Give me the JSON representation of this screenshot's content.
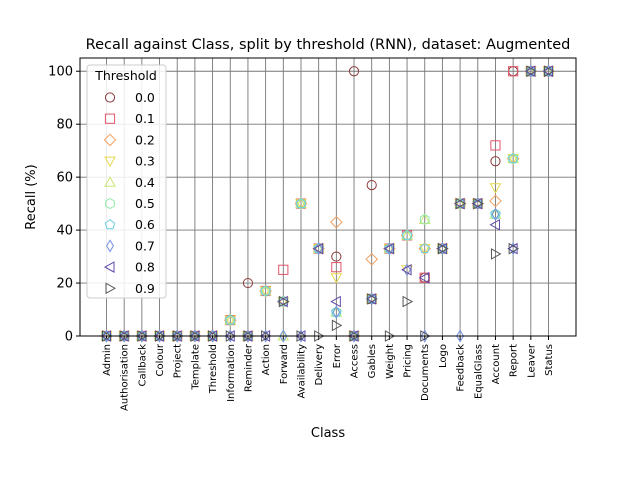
{
  "chart_data": {
    "type": "scatter",
    "title": "Recall against Class, split by threshold (RNN), dataset: Augmented",
    "xlabel": "Class",
    "ylabel": "Recall (%)",
    "ylim": [
      0,
      105
    ],
    "yticks": [
      0,
      20,
      40,
      60,
      80,
      100
    ],
    "grid": true,
    "legend": {
      "title": "Threshold",
      "placement": "top-left"
    },
    "categories": [
      "Admin",
      "Authorisation",
      "Callback",
      "Colour",
      "Project",
      "Template",
      "Threshold",
      "Information",
      "Reminder",
      "Action",
      "Forward",
      "Availability",
      "Delivery",
      "Error",
      "Access",
      "Gables",
      "Weight",
      "Pricing",
      "Documents",
      "Logo",
      "Feedback",
      "EqualGlass",
      "Account",
      "Report",
      "Leaver",
      "Status"
    ],
    "series": [
      {
        "name": "0.0",
        "marker": "circle",
        "color": "#8b3a3a",
        "values": [
          0,
          0,
          0,
          0,
          0,
          0,
          0,
          6,
          20,
          17,
          13,
          50,
          33,
          30,
          100,
          57,
          33,
          38,
          22,
          33,
          50,
          50,
          66,
          100,
          100,
          100
        ]
      },
      {
        "name": "0.1",
        "marker": "square",
        "color": "#e0556a",
        "values": [
          0,
          0,
          0,
          0,
          0,
          0,
          0,
          6,
          0,
          17,
          25,
          50,
          33,
          26,
          0,
          14,
          33,
          38,
          22,
          33,
          50,
          50,
          72,
          100,
          100,
          100
        ]
      },
      {
        "name": "0.2",
        "marker": "diamond",
        "color": "#f0a060",
        "values": [
          0,
          0,
          0,
          0,
          0,
          0,
          0,
          6,
          0,
          17,
          13,
          50,
          33,
          43,
          0,
          29,
          33,
          38,
          33,
          33,
          50,
          50,
          51,
          67,
          100,
          100
        ]
      },
      {
        "name": "0.3",
        "marker": "triangle-down",
        "color": "#e8d84a",
        "values": [
          0,
          0,
          0,
          0,
          0,
          0,
          0,
          6,
          0,
          17,
          13,
          50,
          33,
          22,
          0,
          14,
          33,
          25,
          33,
          33,
          50,
          50,
          56,
          67,
          100,
          100
        ]
      },
      {
        "name": "0.4",
        "marker": "triangle-up",
        "color": "#c8e870",
        "values": [
          0,
          0,
          0,
          0,
          0,
          0,
          0,
          6,
          0,
          17,
          0,
          50,
          33,
          9,
          0,
          14,
          33,
          38,
          44,
          33,
          50,
          50,
          46,
          67,
          100,
          100
        ]
      },
      {
        "name": "0.5",
        "marker": "hexagon",
        "color": "#90e8a8",
        "values": [
          0,
          0,
          0,
          0,
          0,
          0,
          0,
          6,
          0,
          17,
          13,
          50,
          33,
          9,
          0,
          14,
          33,
          38,
          44,
          33,
          50,
          50,
          46,
          67,
          100,
          100
        ]
      },
      {
        "name": "0.6",
        "marker": "pentagon",
        "color": "#6ad0e0",
        "values": [
          0,
          0,
          0,
          0,
          0,
          0,
          0,
          6,
          0,
          17,
          13,
          50,
          33,
          9,
          0,
          14,
          33,
          38,
          33,
          33,
          50,
          50,
          46,
          67,
          100,
          100
        ]
      },
      {
        "name": "0.7",
        "marker": "thin-diamond",
        "color": "#7090e0",
        "values": [
          0,
          0,
          0,
          0,
          0,
          0,
          0,
          0,
          0,
          0,
          0,
          0,
          33,
          9,
          0,
          14,
          33,
          25,
          0,
          33,
          0,
          50,
          46,
          33,
          100,
          100
        ]
      },
      {
        "name": "0.8",
        "marker": "triangle-left",
        "color": "#6048a8",
        "values": [
          0,
          0,
          0,
          0,
          0,
          0,
          0,
          0,
          0,
          0,
          13,
          0,
          33,
          13,
          0,
          14,
          33,
          25,
          22,
          33,
          50,
          50,
          42,
          33,
          100,
          100
        ]
      },
      {
        "name": "0.9",
        "marker": "triangle-right",
        "color": "#555555",
        "values": [
          0,
          0,
          0,
          0,
          0,
          0,
          0,
          0,
          0,
          0,
          13,
          0,
          0,
          4,
          0,
          14,
          0,
          13,
          0,
          33,
          50,
          50,
          31,
          33,
          100,
          100
        ]
      }
    ]
  }
}
